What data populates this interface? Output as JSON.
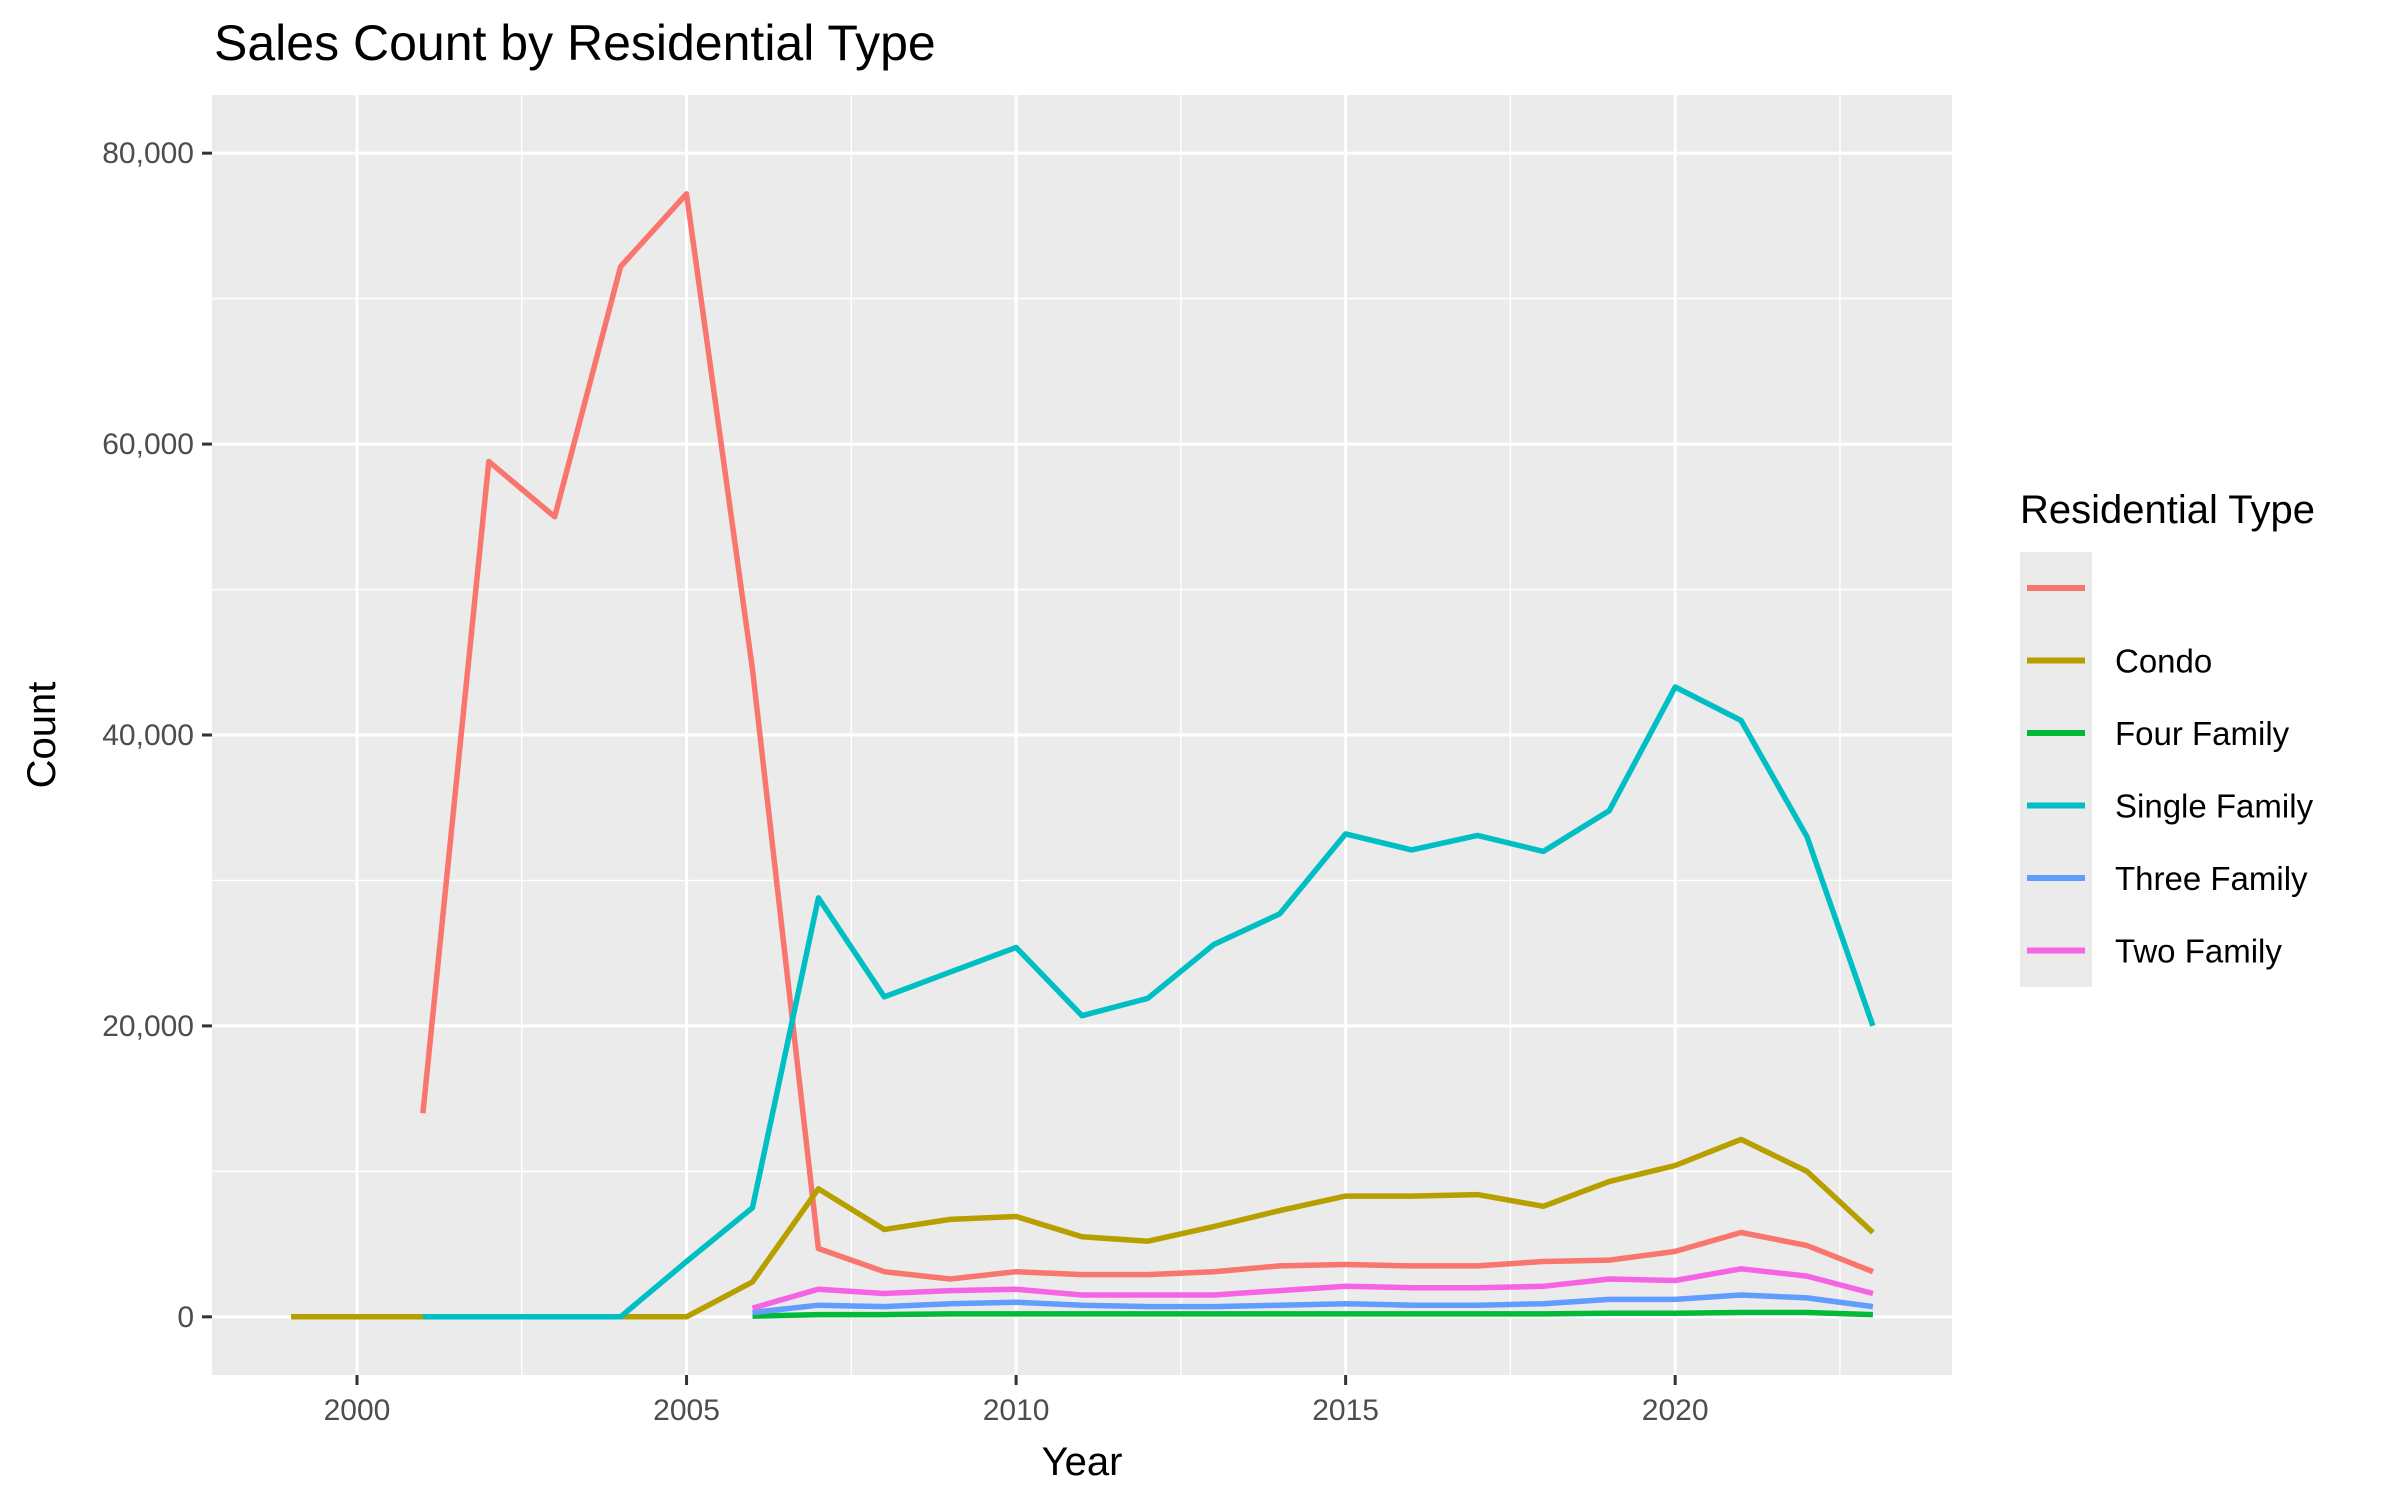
{
  "chart_data": {
    "type": "line",
    "title": "Sales Count by Residential Type",
    "xlabel": "Year",
    "ylabel": "Count",
    "xlim": [
      1999,
      2023
    ],
    "ylim": [
      0,
      80000
    ],
    "x_ticks": [
      2000,
      2005,
      2010,
      2015,
      2020
    ],
    "x_tick_labels": [
      "2000",
      "2005",
      "2010",
      "2015",
      "2020"
    ],
    "y_ticks": [
      0,
      20000,
      40000,
      60000,
      80000
    ],
    "y_tick_labels": [
      "0",
      "20,000",
      "40,000",
      "60,000",
      "80,000"
    ],
    "grid": true,
    "background": "#ebebeb",
    "legend": {
      "title": "Residential Type",
      "placement": "right"
    },
    "series": [
      {
        "name": "",
        "color": "#f8766d",
        "points": [
          [
            2001,
            14000
          ],
          [
            2002,
            58800
          ],
          [
            2003,
            55000
          ],
          [
            2004,
            72200
          ],
          [
            2005,
            77200
          ],
          [
            2006,
            44500
          ],
          [
            2007,
            4700
          ],
          [
            2008,
            3100
          ],
          [
            2009,
            2600
          ],
          [
            2010,
            3100
          ],
          [
            2011,
            2900
          ],
          [
            2012,
            2900
          ],
          [
            2013,
            3100
          ],
          [
            2014,
            3500
          ],
          [
            2015,
            3600
          ],
          [
            2016,
            3500
          ],
          [
            2017,
            3500
          ],
          [
            2018,
            3800
          ],
          [
            2019,
            3900
          ],
          [
            2020,
            4500
          ],
          [
            2021,
            5800
          ],
          [
            2022,
            4900
          ],
          [
            2023,
            3100
          ]
        ]
      },
      {
        "name": "Condo",
        "color": "#b79f00",
        "points": [
          [
            1999,
            0
          ],
          [
            2000,
            0
          ],
          [
            2001,
            0
          ],
          [
            2002,
            0
          ],
          [
            2003,
            0
          ],
          [
            2004,
            0
          ],
          [
            2005,
            0
          ],
          [
            2006,
            2400
          ],
          [
            2007,
            8800
          ],
          [
            2008,
            6000
          ],
          [
            2009,
            6700
          ],
          [
            2010,
            6900
          ],
          [
            2011,
            5500
          ],
          [
            2012,
            5200
          ],
          [
            2013,
            6200
          ],
          [
            2014,
            7300
          ],
          [
            2015,
            8300
          ],
          [
            2016,
            8300
          ],
          [
            2017,
            8400
          ],
          [
            2018,
            7600
          ],
          [
            2019,
            9300
          ],
          [
            2020,
            10400
          ],
          [
            2021,
            12200
          ],
          [
            2022,
            10000
          ],
          [
            2023,
            5800
          ]
        ]
      },
      {
        "name": "Four Family",
        "color": "#00ba38",
        "points": [
          [
            2006,
            50
          ],
          [
            2007,
            150
          ],
          [
            2008,
            150
          ],
          [
            2009,
            200
          ],
          [
            2010,
            200
          ],
          [
            2011,
            200
          ],
          [
            2012,
            200
          ],
          [
            2013,
            200
          ],
          [
            2014,
            200
          ],
          [
            2015,
            200
          ],
          [
            2016,
            200
          ],
          [
            2017,
            200
          ],
          [
            2018,
            200
          ],
          [
            2019,
            250
          ],
          [
            2020,
            250
          ],
          [
            2021,
            300
          ],
          [
            2022,
            300
          ],
          [
            2023,
            150
          ]
        ]
      },
      {
        "name": "Single Family",
        "color": "#00bfc4",
        "points": [
          [
            2001,
            0
          ],
          [
            2002,
            0
          ],
          [
            2003,
            0
          ],
          [
            2004,
            0
          ],
          [
            2005,
            3800
          ],
          [
            2006,
            7500
          ],
          [
            2007,
            28800
          ],
          [
            2008,
            22000
          ],
          [
            2009,
            23700
          ],
          [
            2010,
            25400
          ],
          [
            2011,
            20700
          ],
          [
            2012,
            21900
          ],
          [
            2013,
            25600
          ],
          [
            2014,
            27700
          ],
          [
            2015,
            33200
          ],
          [
            2016,
            32100
          ],
          [
            2017,
            33100
          ],
          [
            2018,
            32000
          ],
          [
            2019,
            34800
          ],
          [
            2020,
            43300
          ],
          [
            2021,
            41000
          ],
          [
            2022,
            33000
          ],
          [
            2023,
            20000
          ]
        ]
      },
      {
        "name": "Three Family",
        "color": "#619cff",
        "points": [
          [
            2006,
            300
          ],
          [
            2007,
            800
          ],
          [
            2008,
            700
          ],
          [
            2009,
            900
          ],
          [
            2010,
            1000
          ],
          [
            2011,
            800
          ],
          [
            2012,
            700
          ],
          [
            2013,
            700
          ],
          [
            2014,
            800
          ],
          [
            2015,
            900
          ],
          [
            2016,
            800
          ],
          [
            2017,
            800
          ],
          [
            2018,
            900
          ],
          [
            2019,
            1200
          ],
          [
            2020,
            1200
          ],
          [
            2021,
            1500
          ],
          [
            2022,
            1300
          ],
          [
            2023,
            700
          ]
        ]
      },
      {
        "name": "Two Family",
        "color": "#f564e3",
        "points": [
          [
            2006,
            600
          ],
          [
            2007,
            1900
          ],
          [
            2008,
            1600
          ],
          [
            2009,
            1800
          ],
          [
            2010,
            1900
          ],
          [
            2011,
            1500
          ],
          [
            2012,
            1500
          ],
          [
            2013,
            1500
          ],
          [
            2014,
            1800
          ],
          [
            2015,
            2100
          ],
          [
            2016,
            2000
          ],
          [
            2017,
            2000
          ],
          [
            2018,
            2100
          ],
          [
            2019,
            2600
          ],
          [
            2020,
            2500
          ],
          [
            2021,
            3300
          ],
          [
            2022,
            2800
          ],
          [
            2023,
            1600
          ]
        ]
      }
    ]
  }
}
